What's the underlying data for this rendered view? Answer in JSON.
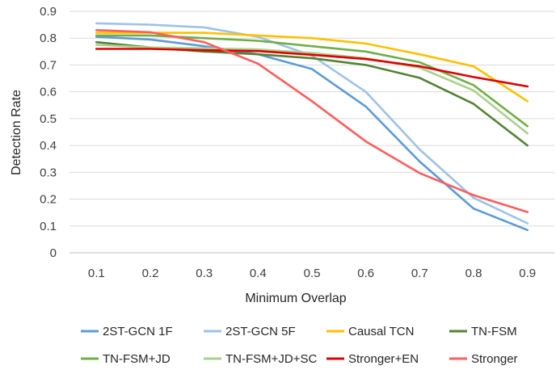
{
  "chart_data": {
    "type": "line",
    "xlabel": "Minimum Overlap",
    "ylabel": "Detection Rate",
    "x": [
      0.1,
      0.2,
      0.3,
      0.4,
      0.5,
      0.6,
      0.7,
      0.8,
      0.9
    ],
    "x_tick_labels": [
      "0.1",
      "0.2",
      "0.3",
      "0.4",
      "0.5",
      "0.6",
      "0.7",
      "0.8",
      "0.9"
    ],
    "ylim": [
      0,
      0.9
    ],
    "y_ticks": [
      0,
      0.1,
      0.2,
      0.3,
      0.4,
      0.5,
      0.6,
      0.7,
      0.8,
      0.9
    ],
    "y_tick_labels": [
      "0",
      "0.1",
      "0.2",
      "0.3",
      "0.4",
      "0.5",
      "0.6",
      "0.7",
      "0.8",
      "0.9"
    ],
    "grid": "horizontal",
    "legend_position": "bottom",
    "series": [
      {
        "name": "2ST-GCN 1F",
        "color": "#5B9BD5",
        "values": [
          0.805,
          0.795,
          0.77,
          0.74,
          0.685,
          0.545,
          0.34,
          0.165,
          0.085
        ]
      },
      {
        "name": "2ST-GCN 5F",
        "color": "#9DC3E6",
        "values": [
          0.855,
          0.85,
          0.84,
          0.805,
          0.735,
          0.6,
          0.385,
          0.205,
          0.11
        ]
      },
      {
        "name": "Causal TCN",
        "color": "#FFC000",
        "values": [
          0.82,
          0.82,
          0.82,
          0.81,
          0.8,
          0.78,
          0.74,
          0.695,
          0.565
        ]
      },
      {
        "name": "TN-FSM",
        "color": "#548235",
        "values": [
          0.785,
          0.765,
          0.75,
          0.74,
          0.725,
          0.7,
          0.652,
          0.555,
          0.4
        ]
      },
      {
        "name": "TN-FSM+JD",
        "color": "#70AD47",
        "values": [
          0.81,
          0.81,
          0.8,
          0.79,
          0.77,
          0.75,
          0.71,
          0.625,
          0.472
        ]
      },
      {
        "name": "TN-FSM+JD+SC",
        "color": "#A9D18E",
        "values": [
          0.775,
          0.765,
          0.762,
          0.758,
          0.745,
          0.725,
          0.69,
          0.605,
          0.445
        ]
      },
      {
        "name": "Stronger+EN",
        "color": "#E00000",
        "values": [
          0.76,
          0.76,
          0.755,
          0.752,
          0.738,
          0.722,
          0.695,
          0.655,
          0.62
        ]
      },
      {
        "name": "Stronger",
        "color": "#FF5C5C",
        "values": [
          0.83,
          0.822,
          0.785,
          0.705,
          0.565,
          0.415,
          0.297,
          0.215,
          0.152
        ]
      }
    ]
  }
}
